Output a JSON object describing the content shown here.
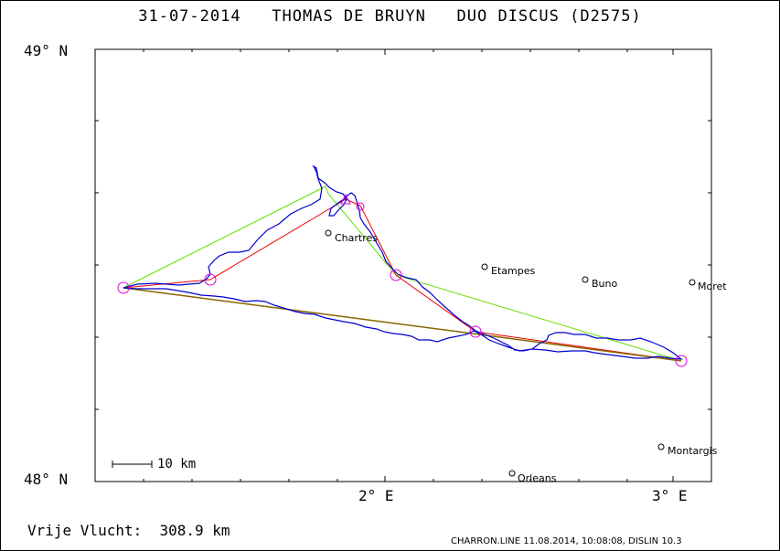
{
  "title": "31-07-2014   THOMAS DE BRUYN   DUO DISCUS (D2575)",
  "axes": {
    "y_top": "49° N",
    "y_bottom": "48° N",
    "x_mid": "2° E",
    "x_right": "3° E"
  },
  "towns": [
    {
      "name": "Chartres"
    },
    {
      "name": "Etampes"
    },
    {
      "name": "Buno"
    },
    {
      "name": "Moret"
    },
    {
      "name": "Montargis"
    },
    {
      "name": "Orleans"
    }
  ],
  "scale_bar": "10 km",
  "distance_label": "Vrije Vlucht:  308.9 km",
  "footer": "CHARRON.LINE 11.08.2014, 10:08:08, DISLIN 10.3",
  "colors": {
    "track": "#0000cc",
    "task": "#ee0000",
    "alt_task": "#66dd00",
    "turnpoint": "#dd00dd",
    "closing": "#886600"
  }
}
